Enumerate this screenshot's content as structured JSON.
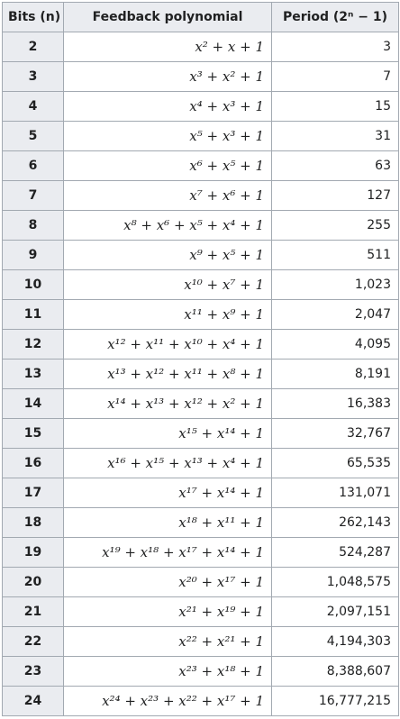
{
  "table": {
    "headers": {
      "bits": "Bits (n)",
      "poly": "Feedback polynomial",
      "period": "Period (2ⁿ − 1)"
    },
    "rows": [
      {
        "n": "2",
        "poly": "x² + x + 1",
        "period": "3"
      },
      {
        "n": "3",
        "poly": "x³ + x² + 1",
        "period": "7"
      },
      {
        "n": "4",
        "poly": "x⁴ + x³ + 1",
        "period": "15"
      },
      {
        "n": "5",
        "poly": "x⁵ + x³ + 1",
        "period": "31"
      },
      {
        "n": "6",
        "poly": "x⁶ + x⁵ + 1",
        "period": "63"
      },
      {
        "n": "7",
        "poly": "x⁷ + x⁶ + 1",
        "period": "127"
      },
      {
        "n": "8",
        "poly": "x⁸ + x⁶ + x⁵ + x⁴ + 1",
        "period": "255"
      },
      {
        "n": "9",
        "poly": "x⁹ + x⁵ + 1",
        "period": "511"
      },
      {
        "n": "10",
        "poly": "x¹⁰ + x⁷ + 1",
        "period": "1,023"
      },
      {
        "n": "11",
        "poly": "x¹¹ + x⁹ + 1",
        "period": "2,047"
      },
      {
        "n": "12",
        "poly": "x¹² + x¹¹ + x¹⁰ + x⁴ + 1",
        "period": "4,095"
      },
      {
        "n": "13",
        "poly": "x¹³ + x¹² + x¹¹ + x⁸ + 1",
        "period": "8,191"
      },
      {
        "n": "14",
        "poly": "x¹⁴ + x¹³ + x¹² + x² + 1",
        "period": "16,383"
      },
      {
        "n": "15",
        "poly": "x¹⁵ + x¹⁴ + 1",
        "period": "32,767"
      },
      {
        "n": "16",
        "poly": "x¹⁶ + x¹⁵ + x¹³ + x⁴ + 1",
        "period": "65,535"
      },
      {
        "n": "17",
        "poly": "x¹⁷ + x¹⁴ + 1",
        "period": "131,071"
      },
      {
        "n": "18",
        "poly": "x¹⁸ + x¹¹ + 1",
        "period": "262,143"
      },
      {
        "n": "19",
        "poly": "x¹⁹ + x¹⁸ + x¹⁷ + x¹⁴ + 1",
        "period": "524,287"
      },
      {
        "n": "20",
        "poly": "x²⁰ + x¹⁷ + 1",
        "period": "1,048,575"
      },
      {
        "n": "21",
        "poly": "x²¹ + x¹⁹ + 1",
        "period": "2,097,151"
      },
      {
        "n": "22",
        "poly": "x²² + x²¹ + 1",
        "period": "4,194,303"
      },
      {
        "n": "23",
        "poly": "x²³ + x¹⁸ + 1",
        "period": "8,388,607"
      },
      {
        "n": "24",
        "poly": "x²⁴ + x²³ + x²² + x¹⁷ + 1",
        "period": "16,777,215"
      }
    ]
  }
}
